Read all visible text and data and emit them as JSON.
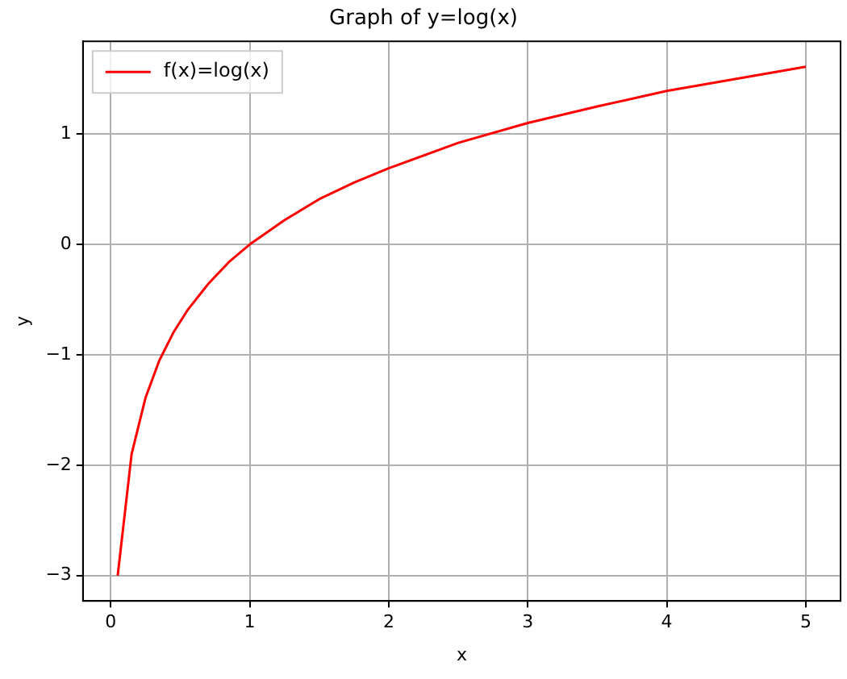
{
  "chart_data": {
    "type": "line",
    "title": "Graph of y=log(x)",
    "xlabel": "x",
    "ylabel": "y",
    "series": [
      {
        "name": "f(x)=log(x)",
        "color": "#ff0000",
        "x": [
          0.05,
          0.15,
          0.25,
          0.35,
          0.45,
          0.55,
          0.7,
          0.85,
          1,
          1.25,
          1.5,
          1.75,
          2,
          2.5,
          3,
          3.5,
          4,
          4.5,
          5
        ],
        "values": [
          -3.0,
          -1.9,
          -1.39,
          -1.05,
          -0.8,
          -0.6,
          -0.36,
          -0.16,
          0,
          0.22,
          0.41,
          0.56,
          0.69,
          0.92,
          1.1,
          1.25,
          1.39,
          1.5,
          1.61
        ]
      }
    ],
    "xlim": [
      -0.2,
      5.25
    ],
    "ylim": [
      -3.23,
      1.84
    ],
    "xticks": [
      0,
      1,
      2,
      3,
      4,
      5
    ],
    "yticks": [
      {
        "value": -3,
        "label": "−3"
      },
      {
        "value": -2,
        "label": "−2"
      },
      {
        "value": -1,
        "label": "−1"
      },
      0,
      1
    ],
    "grid": true,
    "legend": "top left",
    "marker": "none",
    "line_style": "solid"
  }
}
